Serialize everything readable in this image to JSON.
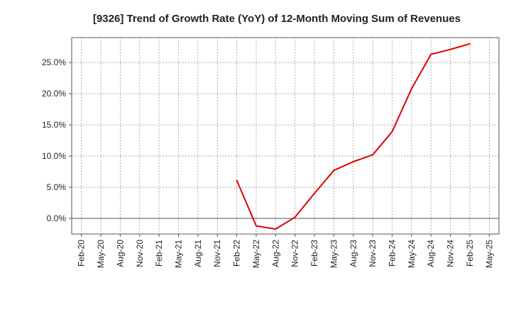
{
  "chart_data": {
    "type": "line",
    "title": "[9326]  Trend of Growth Rate (YoY) of 12-Month Moving Sum of Revenues",
    "xlabel": "",
    "ylabel": "",
    "x_ticks": [
      "Feb-20",
      "May-20",
      "Aug-20",
      "Nov-20",
      "Feb-21",
      "May-21",
      "Aug-21",
      "Nov-21",
      "Feb-22",
      "May-22",
      "Aug-22",
      "Nov-22",
      "Feb-23",
      "May-23",
      "Aug-23",
      "Nov-23",
      "Feb-24",
      "May-24",
      "Aug-24",
      "Nov-24",
      "Feb-25",
      "May-25"
    ],
    "y_ticks": [
      "0.0%",
      "5.0%",
      "10.0%",
      "15.0%",
      "20.0%",
      "25.0%"
    ],
    "y_tick_values": [
      0,
      5,
      10,
      15,
      20,
      25
    ],
    "ylim": [
      -2.5,
      29
    ],
    "grid": true,
    "line_color": "#dd0000",
    "series": [
      {
        "x": [
          "Feb-22",
          "May-22",
          "Aug-22",
          "Nov-22",
          "Feb-23",
          "May-23",
          "Aug-23",
          "Nov-23",
          "Feb-24",
          "May-24",
          "Aug-24",
          "Nov-24",
          "Feb-25"
        ],
        "values": [
          6.1,
          -1.2,
          -1.7,
          0.2,
          4.0,
          7.7,
          9.1,
          10.2,
          13.9,
          20.8,
          26.3,
          27.1,
          28.0
        ]
      }
    ]
  }
}
